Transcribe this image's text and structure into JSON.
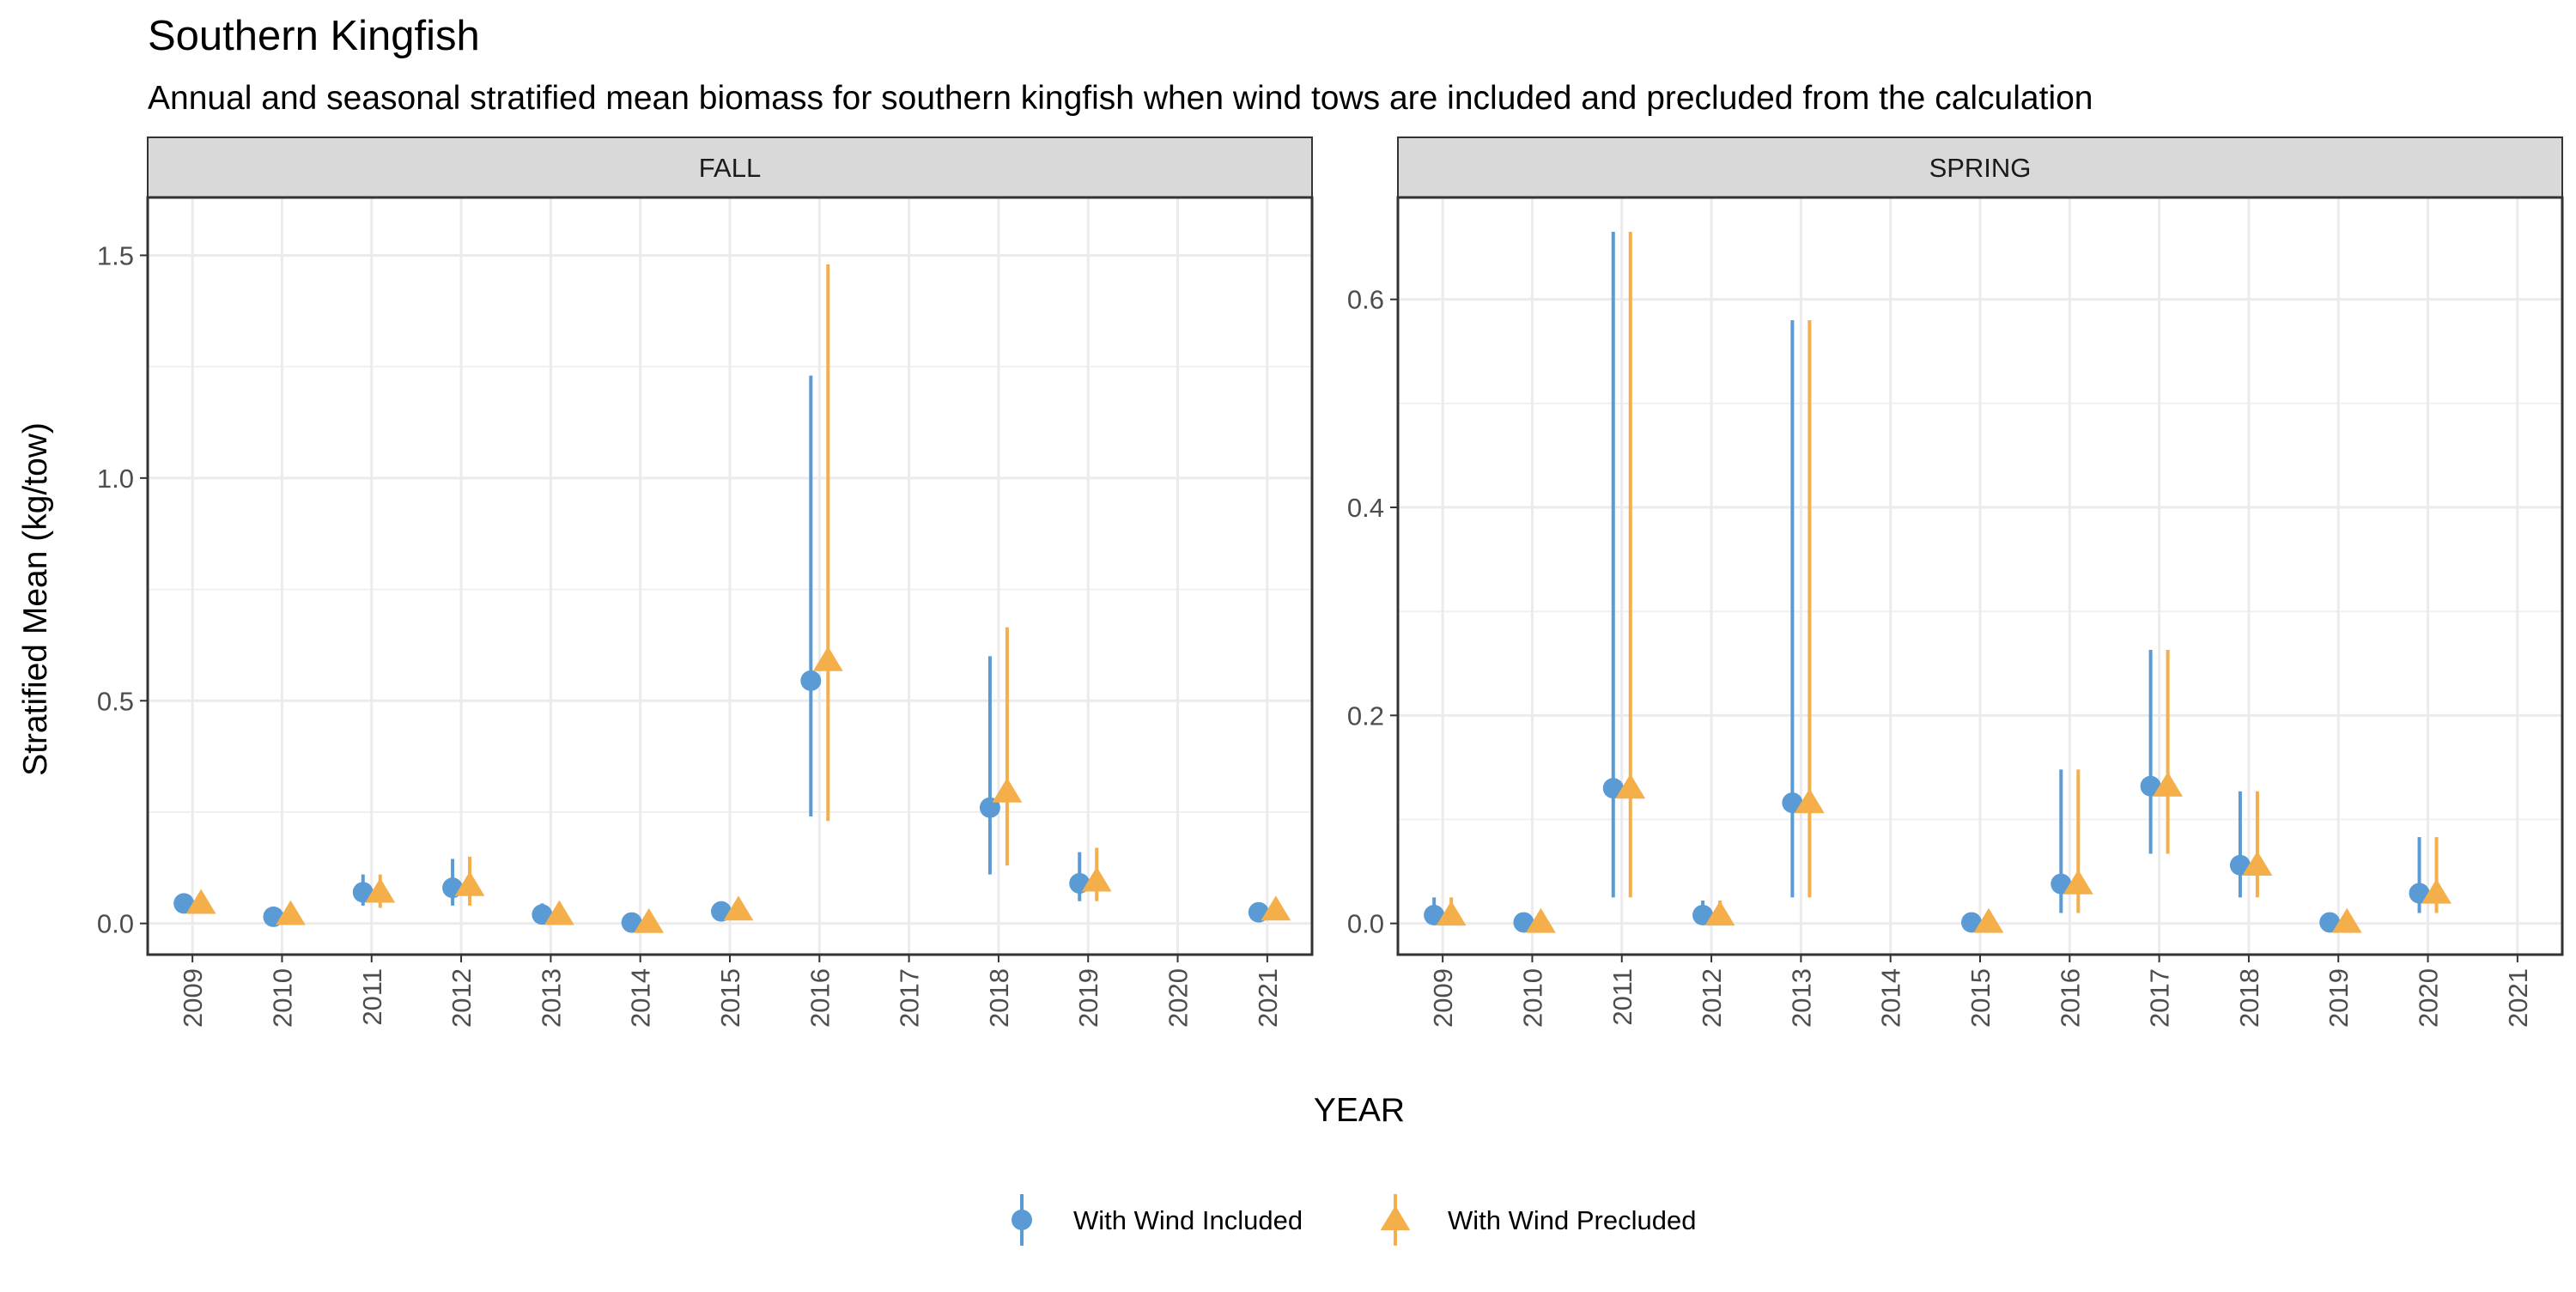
{
  "title": "Southern Kingfish",
  "subtitle": "Annual and seasonal stratified mean biomass for southern kingfish when wind tows are included and precluded from the calculation",
  "xlabel": "YEAR",
  "ylabel": "Stratified Mean (kg/tow)",
  "legend": [
    {
      "label": "With Wind Included",
      "shape": "circle",
      "color": "#5B9BD5"
    },
    {
      "label": "With Wind Precluded",
      "shape": "triangle",
      "color": "#F4AF4B"
    }
  ],
  "chart_data": [
    {
      "type": "scatter",
      "panel": "FALL",
      "x_categories": [
        "2009",
        "2010",
        "2011",
        "2012",
        "2013",
        "2014",
        "2015",
        "2016",
        "2017",
        "2018",
        "2019",
        "2020",
        "2021"
      ],
      "ylim": [
        -0.07,
        1.63
      ],
      "y_ticks": [
        0.0,
        0.5,
        1.0,
        1.5
      ],
      "y_tick_labels": [
        "0.0",
        "0.5",
        "1.0",
        "1.5"
      ],
      "grid": true,
      "legend_position": "bottom",
      "series": [
        {
          "name": "With Wind Included",
          "points": [
            {
              "x": "2009",
              "y": 0.045,
              "lo": 0.025,
              "hi": 0.065
            },
            {
              "x": "2010",
              "y": 0.015,
              "lo": 0.01,
              "hi": 0.02
            },
            {
              "x": "2011",
              "y": 0.07,
              "lo": 0.04,
              "hi": 0.11
            },
            {
              "x": "2012",
              "y": 0.08,
              "lo": 0.04,
              "hi": 0.145
            },
            {
              "x": "2013",
              "y": 0.02,
              "lo": 0.005,
              "hi": 0.045
            },
            {
              "x": "2014",
              "y": 0.002,
              "lo": 0.0,
              "hi": 0.005
            },
            {
              "x": "2015",
              "y": 0.027,
              "lo": 0.02,
              "hi": 0.035
            },
            {
              "x": "2016",
              "y": 0.545,
              "lo": 0.24,
              "hi": 1.23
            },
            {
              "x": "2018",
              "y": 0.26,
              "lo": 0.11,
              "hi": 0.6
            },
            {
              "x": "2019",
              "y": 0.09,
              "lo": 0.05,
              "hi": 0.16
            },
            {
              "x": "2021",
              "y": 0.025,
              "lo": 0.02,
              "hi": 0.03
            }
          ]
        },
        {
          "name": "With Wind Precluded",
          "points": [
            {
              "x": "2009",
              "y": 0.045,
              "lo": 0.025,
              "hi": 0.065
            },
            {
              "x": "2010",
              "y": 0.02,
              "lo": 0.01,
              "hi": 0.025
            },
            {
              "x": "2011",
              "y": 0.07,
              "lo": 0.035,
              "hi": 0.11
            },
            {
              "x": "2012",
              "y": 0.085,
              "lo": 0.04,
              "hi": 0.15
            },
            {
              "x": "2013",
              "y": 0.02,
              "lo": 0.005,
              "hi": 0.045
            },
            {
              "x": "2014",
              "y": 0.002,
              "lo": 0.0,
              "hi": 0.005
            },
            {
              "x": "2015",
              "y": 0.03,
              "lo": 0.02,
              "hi": 0.04
            },
            {
              "x": "2016",
              "y": 0.59,
              "lo": 0.23,
              "hi": 1.48
            },
            {
              "x": "2018",
              "y": 0.295,
              "lo": 0.13,
              "hi": 0.665
            },
            {
              "x": "2019",
              "y": 0.095,
              "lo": 0.05,
              "hi": 0.17
            },
            {
              "x": "2021",
              "y": 0.03,
              "lo": 0.02,
              "hi": 0.035
            }
          ]
        }
      ]
    },
    {
      "type": "scatter",
      "panel": "SPRING",
      "x_categories": [
        "2009",
        "2010",
        "2011",
        "2012",
        "2013",
        "2014",
        "2015",
        "2016",
        "2017",
        "2018",
        "2019",
        "2020",
        "2021"
      ],
      "ylim": [
        -0.03,
        0.698
      ],
      "y_ticks": [
        0.0,
        0.2,
        0.4,
        0.6
      ],
      "y_tick_labels": [
        "0.0",
        "0.2",
        "0.4",
        "0.6"
      ],
      "grid": true,
      "legend_position": "bottom",
      "series": [
        {
          "name": "With Wind Included",
          "points": [
            {
              "x": "2009",
              "y": 0.008,
              "lo": 0.0,
              "hi": 0.025
            },
            {
              "x": "2010",
              "y": 0.001,
              "lo": 0.0,
              "hi": 0.003
            },
            {
              "x": "2011",
              "y": 0.13,
              "lo": 0.025,
              "hi": 0.665
            },
            {
              "x": "2012",
              "y": 0.008,
              "lo": 0.0,
              "hi": 0.022
            },
            {
              "x": "2013",
              "y": 0.116,
              "lo": 0.025,
              "hi": 0.58
            },
            {
              "x": "2015",
              "y": 0.001,
              "lo": 0.0,
              "hi": 0.003
            },
            {
              "x": "2016",
              "y": 0.038,
              "lo": 0.01,
              "hi": 0.148
            },
            {
              "x": "2017",
              "y": 0.132,
              "lo": 0.067,
              "hi": 0.263
            },
            {
              "x": "2018",
              "y": 0.056,
              "lo": 0.025,
              "hi": 0.127
            },
            {
              "x": "2019",
              "y": 0.001,
              "lo": 0.0,
              "hi": 0.003
            },
            {
              "x": "2020",
              "y": 0.029,
              "lo": 0.01,
              "hi": 0.083
            }
          ]
        },
        {
          "name": "With Wind Precluded",
          "points": [
            {
              "x": "2009",
              "y": 0.008,
              "lo": 0.0,
              "hi": 0.025
            },
            {
              "x": "2010",
              "y": 0.001,
              "lo": 0.0,
              "hi": 0.003
            },
            {
              "x": "2011",
              "y": 0.13,
              "lo": 0.025,
              "hi": 0.665
            },
            {
              "x": "2012",
              "y": 0.008,
              "lo": 0.0,
              "hi": 0.022
            },
            {
              "x": "2013",
              "y": 0.116,
              "lo": 0.025,
              "hi": 0.58
            },
            {
              "x": "2015",
              "y": 0.001,
              "lo": 0.0,
              "hi": 0.003
            },
            {
              "x": "2016",
              "y": 0.038,
              "lo": 0.01,
              "hi": 0.148
            },
            {
              "x": "2017",
              "y": 0.132,
              "lo": 0.067,
              "hi": 0.263
            },
            {
              "x": "2018",
              "y": 0.056,
              "lo": 0.025,
              "hi": 0.127
            },
            {
              "x": "2019",
              "y": 0.001,
              "lo": 0.0,
              "hi": 0.003
            },
            {
              "x": "2020",
              "y": 0.029,
              "lo": 0.01,
              "hi": 0.083
            }
          ]
        }
      ]
    }
  ]
}
